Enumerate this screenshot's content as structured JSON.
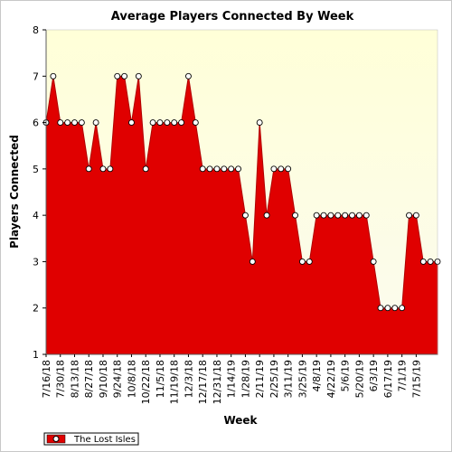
{
  "chart_data": {
    "type": "area",
    "title": "Average Players Connected By Week",
    "xlabel": "Week",
    "ylabel": "Players Connected",
    "ylim": [
      1,
      8
    ],
    "yticks": [
      1,
      2,
      3,
      4,
      5,
      6,
      7,
      8
    ],
    "grid": false,
    "legend_position": "bottom-left",
    "colors": {
      "fill": "#e00000",
      "line": "#b00000",
      "plot_bg_top": "#ffffd8",
      "plot_bg_bottom": "#fbfbef",
      "marker_fill": "#ffffff"
    },
    "x_tick_labels": [
      "7/16/18",
      "7/30/18",
      "8/13/18",
      "8/27/18",
      "9/10/18",
      "9/24/18",
      "10/8/18",
      "10/22/18",
      "11/5/18",
      "11/19/18",
      "12/3/18",
      "12/17/18",
      "12/31/18",
      "1/14/19",
      "1/28/19",
      "2/11/19",
      "2/25/19",
      "3/11/19",
      "3/25/19",
      "4/8/19",
      "4/22/19",
      "5/6/19",
      "5/20/19",
      "6/3/19",
      "6/17/19",
      "7/1/19",
      "7/15/19"
    ],
    "series": [
      {
        "name": "The Lost Isles",
        "values": [
          6,
          7,
          6,
          6,
          6,
          6,
          5,
          6,
          5,
          5,
          7,
          7,
          6,
          7,
          5,
          6,
          6,
          6,
          6,
          6,
          7,
          6,
          5,
          5,
          5,
          5,
          5,
          5,
          4,
          3,
          6,
          4,
          5,
          5,
          5,
          4,
          3,
          3,
          4,
          4,
          4,
          4,
          4,
          4,
          4,
          4,
          3,
          2,
          2,
          2,
          2,
          4,
          4,
          3,
          3,
          3
        ]
      }
    ]
  }
}
